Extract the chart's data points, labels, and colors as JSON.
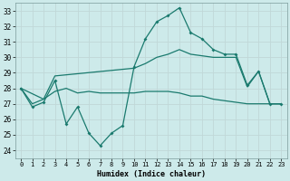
{
  "xlabel": "Humidex (Indice chaleur)",
  "background_color": "#cdeaea",
  "grid_color": "#c0d8d8",
  "line_color": "#1a7a6e",
  "ylim": [
    23.5,
    33.5
  ],
  "xlim": [
    -0.5,
    23.5
  ],
  "yticks": [
    24,
    25,
    26,
    27,
    28,
    29,
    30,
    31,
    32,
    33
  ],
  "x_ticks": [
    0,
    1,
    2,
    3,
    4,
    5,
    6,
    7,
    8,
    9,
    10,
    11,
    12,
    13,
    14,
    15,
    16,
    17,
    18,
    19,
    20,
    21,
    22,
    23
  ],
  "series1_marked": {
    "x": [
      0,
      1,
      2,
      3,
      4,
      5,
      6,
      7,
      8,
      9,
      10,
      11,
      12,
      13,
      14,
      15,
      16,
      17,
      18,
      19,
      20,
      21,
      22,
      23
    ],
    "y": [
      28.0,
      26.8,
      27.1,
      28.5,
      25.7,
      26.8,
      25.1,
      24.3,
      25.1,
      25.6,
      29.4,
      31.2,
      32.3,
      32.7,
      33.2,
      31.6,
      31.2,
      30.5,
      30.2,
      30.2,
      28.2,
      29.1,
      27.0,
      27.0
    ]
  },
  "series2_flat": {
    "x": [
      0,
      1,
      2,
      3,
      4,
      5,
      6,
      7,
      8,
      9,
      10,
      11,
      12,
      13,
      14,
      15,
      16,
      17,
      18,
      19,
      20,
      21,
      22,
      23
    ],
    "y": [
      28.0,
      27.0,
      27.3,
      27.8,
      28.0,
      27.7,
      27.8,
      27.7,
      27.7,
      27.7,
      27.7,
      27.8,
      27.8,
      27.8,
      27.7,
      27.5,
      27.5,
      27.3,
      27.2,
      27.1,
      27.0,
      27.0,
      27.0,
      27.0
    ]
  },
  "series3_rising": {
    "x": [
      0,
      2,
      3,
      10,
      11,
      12,
      13,
      14,
      15,
      16,
      17,
      18,
      19,
      20,
      21,
      22,
      23
    ],
    "y": [
      28.0,
      27.3,
      28.8,
      29.3,
      29.6,
      30.0,
      30.2,
      30.5,
      30.2,
      30.1,
      30.0,
      30.0,
      30.0,
      28.1,
      29.1,
      27.0,
      27.0
    ]
  }
}
